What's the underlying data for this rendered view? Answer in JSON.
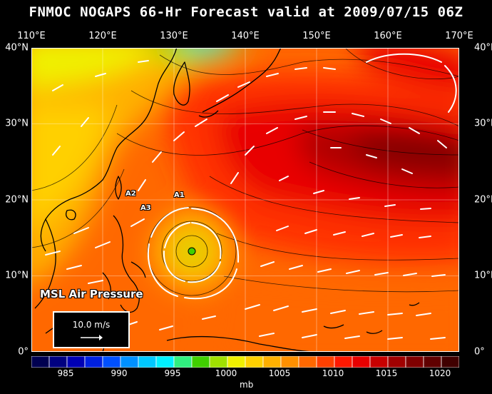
{
  "title": "FNMOC NOGAPS 66-Hr Forecast valid at 2009/07/15 06Z",
  "lon_ticks": [
    "110°E",
    "120°E",
    "130°E",
    "140°E",
    "150°E",
    "160°E",
    "170°E"
  ],
  "lat_ticks": [
    "40°N",
    "30°N",
    "20°N",
    "10°N",
    "0°"
  ],
  "field_label": "MSL Air Pressure",
  "vector_legend": "10.0 m/s",
  "stations": [
    {
      "id": "A1",
      "lon": 128.5,
      "lat": 20.4
    },
    {
      "id": "A2",
      "lon": 124.3,
      "lat": 20.8
    },
    {
      "id": "A3",
      "lon": 125.6,
      "lat": 18.8
    }
  ],
  "colorbar": {
    "unit": "mb",
    "labels": [
      "985",
      "990",
      "995",
      "1000",
      "1005",
      "1010",
      "1015",
      "1020"
    ],
    "colors": [
      "#000050",
      "#000080",
      "#0000b4",
      "#0020e0",
      "#0050ff",
      "#0090ff",
      "#00c8ff",
      "#00f0ff",
      "#30f080",
      "#40d000",
      "#a0e000",
      "#f0f000",
      "#ffd000",
      "#ffb000",
      "#ff9000",
      "#ff6800",
      "#ff4000",
      "#ff1800",
      "#e80000",
      "#c80000",
      "#a00000",
      "#800000",
      "#600000",
      "#400000"
    ]
  },
  "map_extent": {
    "lon_min": 110,
    "lon_max": 170,
    "lat_min": 0,
    "lat_max": 40
  },
  "low_center": {
    "lon": 132.5,
    "lat": 13.0
  }
}
